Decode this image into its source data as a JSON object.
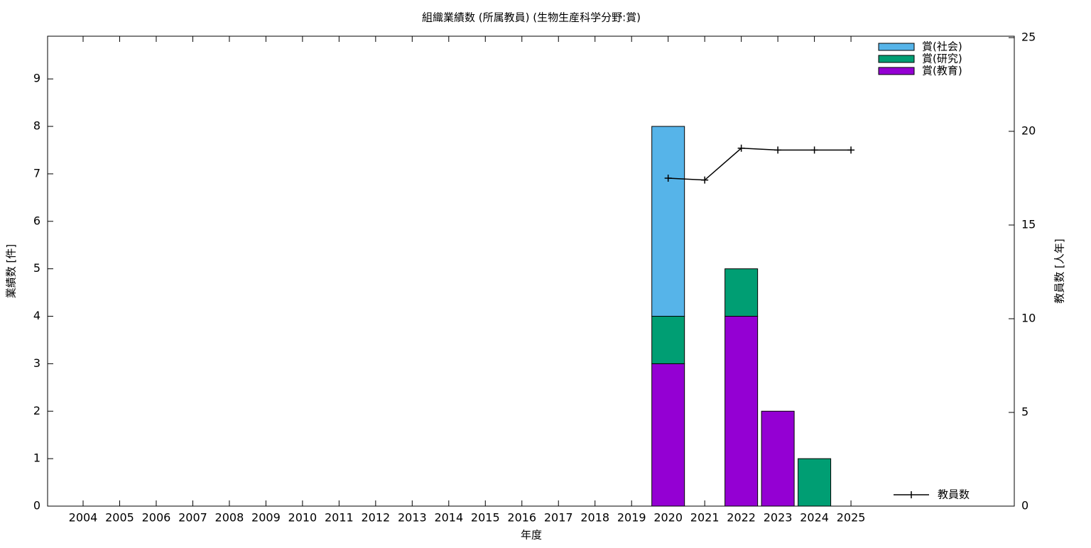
{
  "chart_data": {
    "type": "bar",
    "title": "組織業績数 (所属教員) (生物生産科学分野:賞)",
    "xlabel": "年度",
    "ylabel": "業績数 [件]",
    "y2label": "教員数 [人年]",
    "categories": [
      "2004",
      "2005",
      "2006",
      "2007",
      "2008",
      "2009",
      "2010",
      "2011",
      "2012",
      "2013",
      "2014",
      "2015",
      "2016",
      "2017",
      "2018",
      "2019",
      "2020",
      "2021",
      "2022",
      "2023",
      "2024",
      "2025"
    ],
    "stacked": true,
    "series": [
      {
        "name": "賞(教育)",
        "color": "#9400d3",
        "values": [
          0,
          0,
          0,
          0,
          0,
          0,
          0,
          0,
          0,
          0,
          0,
          0,
          0,
          0,
          0,
          0,
          3,
          0,
          4,
          2,
          0,
          0
        ]
      },
      {
        "name": "賞(研究)",
        "color": "#009e73",
        "values": [
          0,
          0,
          0,
          0,
          0,
          0,
          0,
          0,
          0,
          0,
          0,
          0,
          0,
          0,
          0,
          0,
          1,
          0,
          1,
          0,
          1,
          0
        ]
      },
      {
        "name": "賞(社会)",
        "color": "#56b4e9",
        "values": [
          0,
          0,
          0,
          0,
          0,
          0,
          0,
          0,
          0,
          0,
          0,
          0,
          0,
          0,
          0,
          0,
          4,
          0,
          0,
          0,
          0,
          0
        ]
      },
      {
        "name": "教員数",
        "type": "line",
        "axis": "y2",
        "color": "#000000",
        "values": [
          null,
          null,
          null,
          null,
          null,
          null,
          null,
          null,
          null,
          null,
          null,
          null,
          null,
          null,
          null,
          null,
          17.5,
          17.4,
          19.1,
          19.0,
          19.0,
          19.0
        ]
      }
    ],
    "ylim": [
      0,
      9.9
    ],
    "yticks": [
      0,
      1,
      2,
      3,
      4,
      5,
      6,
      7,
      8,
      9
    ],
    "y2lim": [
      0,
      25
    ],
    "y2ticks": [
      0,
      5,
      10,
      15,
      20,
      25
    ]
  }
}
